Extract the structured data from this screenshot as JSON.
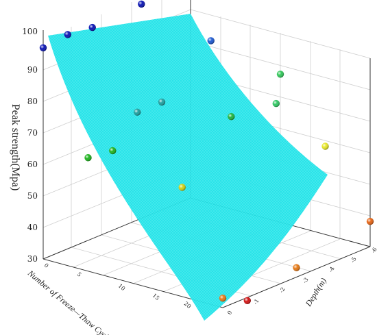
{
  "chart_data": {
    "type": "scatter",
    "subtype": "3d-surface-with-points",
    "ylabel": "Peak strength(Mpa)",
    "xlabel": "Number of Freeze—Thaw Cycles",
    "zlabel": "Depth(m)",
    "y_ticks": [
      "30",
      "40",
      "50",
      "60",
      "70",
      "80",
      "90",
      "100"
    ],
    "x_ticks": [
      "0",
      "5",
      "10",
      "15",
      "20"
    ],
    "z_ticks": [
      "0",
      "-1",
      "-2",
      "-3",
      "-4",
      "-5",
      "-6"
    ],
    "ylim": [
      30,
      100
    ],
    "xlim": [
      0,
      20
    ],
    "zlim": [
      0,
      -6
    ],
    "surface_color": "#1ee3e8",
    "points": [
      {
        "x": 0,
        "z": 0,
        "y": 97,
        "color": "#0a14b4"
      },
      {
        "x": 0,
        "z": -1,
        "y": 98,
        "color": "#0a14b4"
      },
      {
        "x": 0,
        "z": -2,
        "y": 97,
        "color": "#0a14b4"
      },
      {
        "x": 0,
        "z": -4,
        "y": 98,
        "color": "#0a14b4"
      },
      {
        "x": 0,
        "z": -6,
        "y": 94,
        "color": "#1e50d2"
      },
      {
        "x": 5,
        "z": 0,
        "y": 66,
        "color": "#1eb41e"
      },
      {
        "x": 5,
        "z": -1,
        "y": 65,
        "color": "#1eb41e"
      },
      {
        "x": 5,
        "z": -2,
        "y": 74,
        "color": "#1ea0a0"
      },
      {
        "x": 5,
        "z": -3,
        "y": 74,
        "color": "#1ea0a0"
      },
      {
        "x": 5,
        "z": -5,
        "y": 87,
        "color": "#1e5ad2"
      },
      {
        "x": 10,
        "z": -2,
        "y": 54,
        "color": "#d2d214"
      },
      {
        "x": 10,
        "z": -4,
        "y": 70,
        "color": "#1eb43c"
      },
      {
        "x": 10,
        "z": -6,
        "y": 77,
        "color": "#32c85a"
      },
      {
        "x": 15,
        "z": -4,
        "y": 78,
        "color": "#32c864"
      },
      {
        "x": 15,
        "z": -6,
        "y": 58,
        "color": "#e6e628"
      },
      {
        "x": 20,
        "z": 0,
        "y": 33,
        "color": "#e67814"
      },
      {
        "x": 20,
        "z": -3,
        "y": 33,
        "color": "#e67814"
      },
      {
        "x": 20,
        "z": -6,
        "y": 38,
        "color": "#e66414"
      },
      {
        "x": 20,
        "z": -1,
        "y": 29,
        "color": "#d21414"
      }
    ]
  }
}
